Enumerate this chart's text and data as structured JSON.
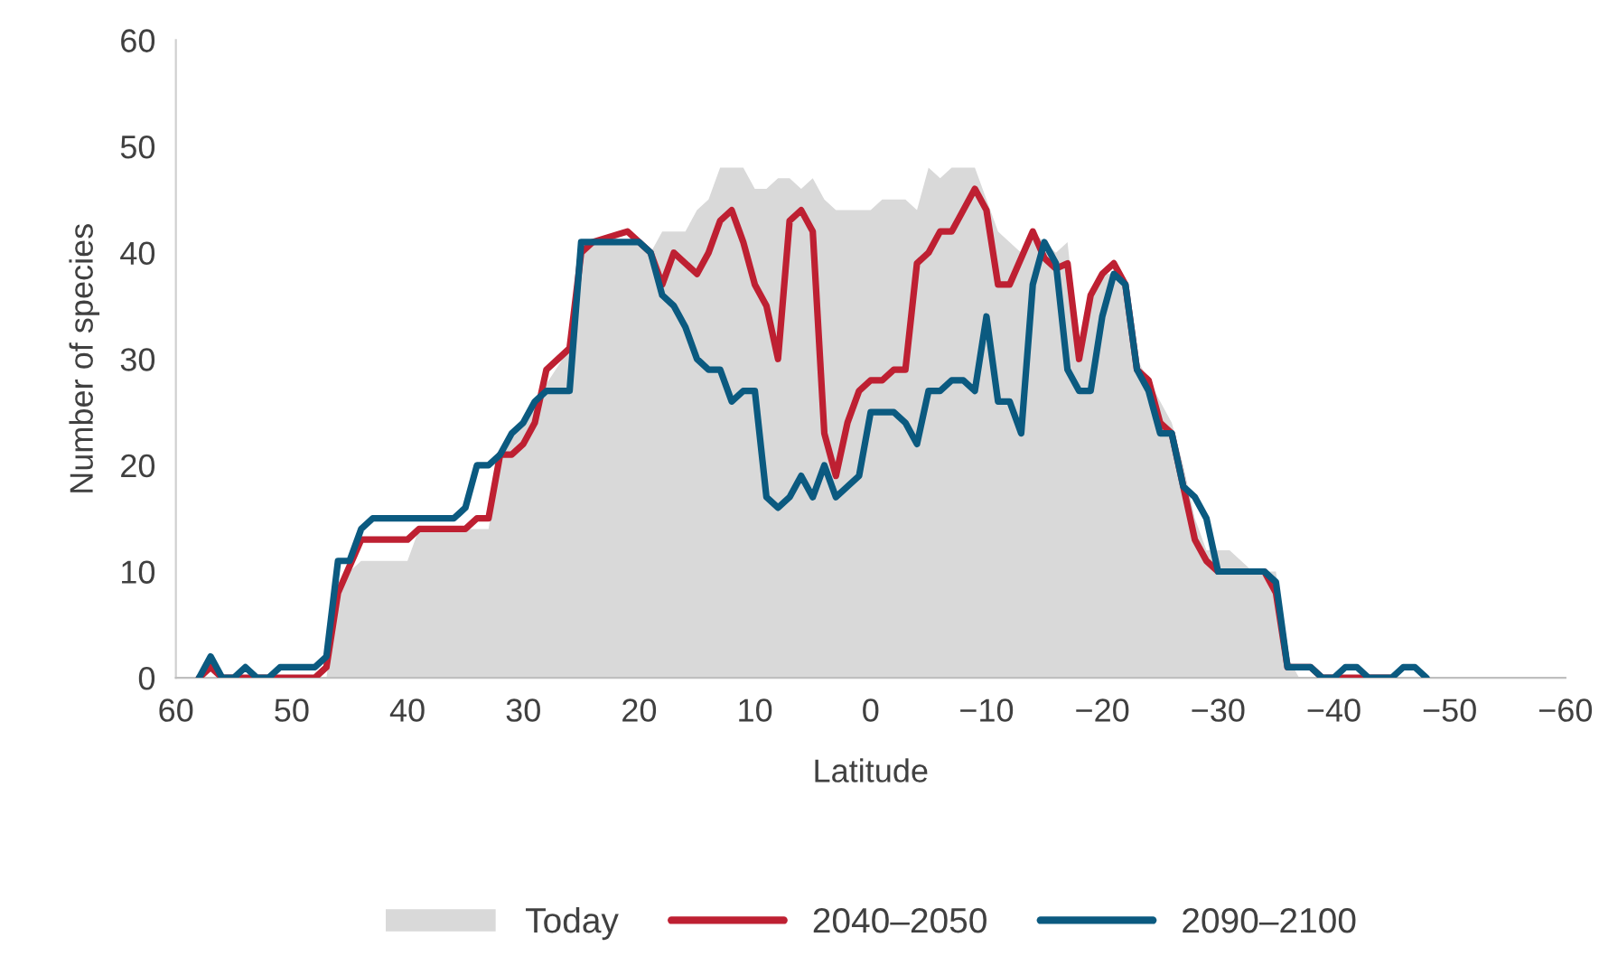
{
  "chart_data": {
    "type": "line",
    "xlabel": "Latitude",
    "ylabel": "Number of species",
    "xlim": [
      60,
      -60
    ],
    "ylim": [
      0,
      60
    ],
    "xticks": [
      60,
      50,
      40,
      30,
      20,
      10,
      0,
      {
        "value": -10,
        "label": "−10"
      },
      {
        "value": -20,
        "label": "−20"
      },
      {
        "value": -30,
        "label": "−30"
      },
      {
        "value": -40,
        "label": "−40"
      },
      {
        "value": -50,
        "label": "−50"
      },
      {
        "value": -60,
        "label": "−60"
      }
    ],
    "yticks": [
      0,
      10,
      20,
      30,
      40,
      50,
      60
    ],
    "grid": false,
    "legend": "bottom",
    "series": [
      {
        "name": "Today",
        "type": "area",
        "color": "#d9d9d9",
        "x": [
          47,
          46,
          45,
          44,
          40,
          39,
          33,
          32,
          26,
          25,
          20,
          19,
          18,
          16,
          15,
          14,
          13,
          11,
          10,
          9,
          8,
          7,
          6,
          5,
          4,
          3,
          0,
          -1,
          -3,
          -4,
          -5,
          -6,
          -7,
          -9,
          -10,
          -11,
          -13,
          -14,
          -15,
          -16,
          -17,
          -18,
          -19,
          -20,
          -21,
          -22,
          -23,
          -24,
          -26,
          -27,
          -28,
          -29,
          -31,
          -32,
          -33,
          -35,
          -36,
          -37
        ],
        "values": [
          0,
          8,
          10,
          11,
          11,
          14,
          14,
          21,
          31,
          41,
          41,
          40,
          42,
          42,
          44,
          45,
          48,
          48,
          46,
          46,
          47,
          47,
          46,
          47,
          45,
          44,
          44,
          45,
          45,
          44,
          48,
          47,
          48,
          48,
          45,
          42,
          40,
          42,
          41,
          40,
          41,
          31,
          36,
          38,
          38,
          37,
          30,
          28,
          24,
          20,
          15,
          12,
          12,
          11,
          10,
          10,
          2,
          0
        ]
      },
      {
        "name": "2040–2050",
        "type": "line",
        "color": "#be2032",
        "x": [
          58,
          57,
          56,
          48,
          47,
          46,
          44,
          40,
          39,
          35,
          34,
          33,
          32,
          31,
          30,
          29,
          28,
          26,
          25,
          24,
          21,
          20,
          19,
          18,
          17,
          15,
          14,
          13,
          12,
          11,
          10,
          9,
          8,
          7,
          6,
          5,
          4,
          3,
          2,
          1,
          0,
          -1,
          -2,
          -3,
          -4,
          -5,
          -6,
          -7,
          -8,
          -9,
          -10,
          -11,
          -12,
          -14,
          -15,
          -16,
          -17,
          -18,
          -19,
          -20,
          -21,
          -22,
          -23,
          -24,
          -25,
          -26,
          -27,
          -28,
          -29,
          -30,
          -34,
          -35,
          -36,
          -38,
          -39,
          -45
        ],
        "values": [
          0,
          1,
          0,
          0,
          1,
          8,
          13,
          13,
          14,
          14,
          15,
          15,
          21,
          21,
          22,
          24,
          29,
          31,
          40,
          41,
          42,
          41,
          40,
          37,
          40,
          38,
          40,
          43,
          44,
          41,
          37,
          35,
          30,
          43,
          44,
          42,
          23,
          19,
          24,
          27,
          28,
          28,
          29,
          29,
          39,
          40,
          42,
          42,
          44,
          46,
          44,
          37,
          37,
          42,
          39.5,
          38.5,
          39,
          30,
          36,
          38,
          39,
          37,
          29,
          28,
          24,
          23,
          18,
          13,
          11,
          10,
          10,
          8,
          1,
          1,
          0,
          0
        ]
      },
      {
        "name": "2090–2100",
        "type": "line",
        "color": "#0b5a80",
        "x": [
          58,
          57,
          56,
          55,
          54,
          53,
          52,
          51,
          48,
          47,
          46,
          45,
          44,
          43,
          36,
          35,
          34,
          33,
          32,
          31,
          30,
          29,
          28,
          26,
          25,
          20,
          19,
          18,
          17,
          16,
          15,
          14,
          13,
          12,
          11,
          10,
          9,
          8,
          7,
          6,
          5,
          4,
          3,
          2,
          1,
          0,
          -2,
          -3,
          -4,
          -5,
          -6,
          -7,
          -8,
          -9,
          -10,
          -11,
          -12,
          -13,
          -14,
          -15,
          -16,
          -17,
          -18,
          -19,
          -20,
          -21,
          -22,
          -23,
          -24,
          -25,
          -26,
          -27,
          -28,
          -29,
          -30,
          -34,
          -35,
          -36,
          -38,
          -39,
          -40,
          -41,
          -42,
          -43,
          -45,
          -46,
          -47,
          -48
        ],
        "values": [
          0,
          2,
          0,
          0,
          1,
          0,
          0,
          1,
          1,
          2,
          11,
          11,
          14,
          15,
          15,
          16,
          20,
          20,
          21,
          23,
          24,
          26,
          27,
          27,
          41,
          41,
          40,
          36,
          35,
          33,
          30,
          29,
          29,
          26,
          27,
          27,
          17,
          16,
          17,
          19,
          17,
          20,
          17,
          18,
          19,
          25,
          25,
          24,
          22,
          27,
          27,
          28,
          28,
          27,
          34,
          26,
          26,
          23,
          37,
          41,
          39,
          29,
          27,
          27,
          34,
          38,
          37,
          29,
          27,
          23,
          23,
          18,
          17,
          15,
          10,
          10,
          9,
          1,
          1,
          0,
          0,
          1,
          1,
          0,
          0,
          1,
          1,
          0
        ]
      }
    ]
  }
}
